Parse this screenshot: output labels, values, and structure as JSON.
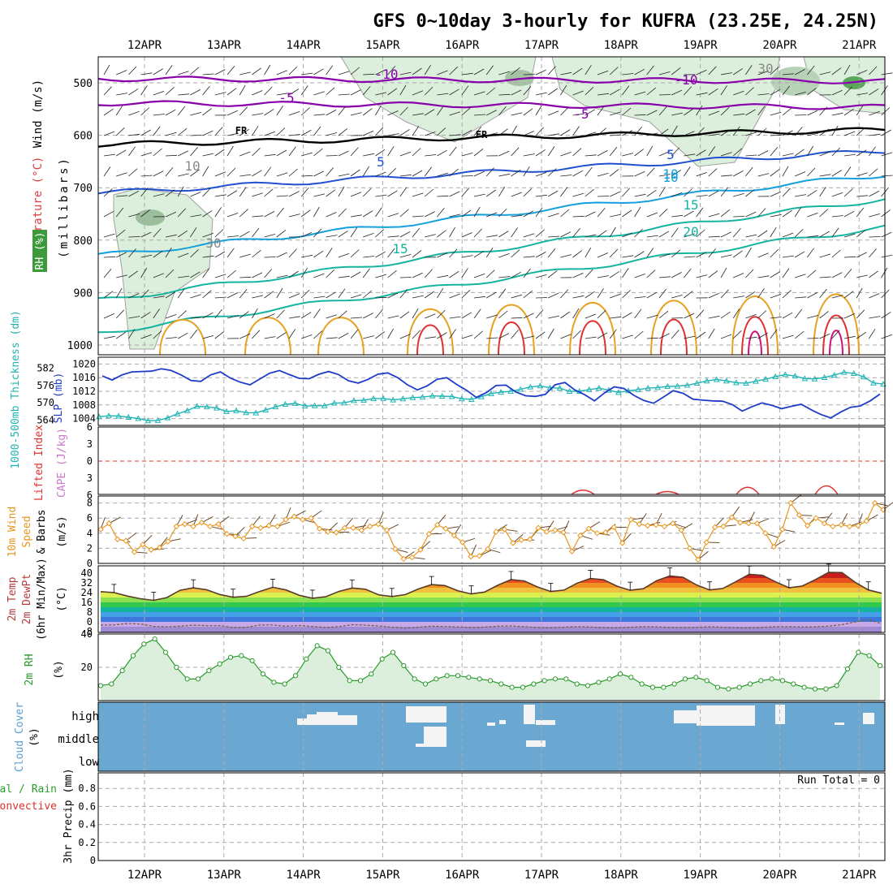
{
  "title": "GFS 0~10day 3-hourly for KUFRA (23.25E, 24.25N)",
  "dates": [
    "12APR",
    "13APR",
    "14APR",
    "15APR",
    "16APR",
    "17APR",
    "18APR",
    "19APR",
    "20APR",
    "21APR"
  ],
  "colors": {
    "frame": "#000000",
    "grid": "#aaaaaa",
    "rh_fill": "#dcefdc",
    "rh_line": "#a0a0a0",
    "temp_cold": "#8800aa",
    "temp_blue": "#1e50d0",
    "temp_cyan": "#14a0dc",
    "temp_teal": "#14b4a0",
    "temp_orange": "#e8a020",
    "temp_red": "#e03030",
    "temp_magenta": "#d0107a",
    "slp": "#1e3cc8",
    "thickness": "#20b4b4",
    "lifted": "#e03030",
    "cape": "#c878c8",
    "wind": "#e8961e",
    "cloud": "#6aa8d2",
    "rh2m": "#2a9a2a",
    "precip_total": "#2aa02a",
    "precip_conv": "#e03030"
  },
  "labels": {
    "p1_wind": "Wind (m/s)",
    "p1_temp": "Temperature (°C)",
    "p1_rh": "RH (%)",
    "p1_mb": "(millibars)",
    "p2_thk": "1000-500mb Thickness (dm)",
    "p2_slp": "SLP (mb)",
    "p3_li": "Lifted Index",
    "p3_cape": "CAPE (J/kg)",
    "p4_a": "10m Wind",
    "p4_b": "Speed",
    "p4_c": "& Barbs",
    "p4_unit": "(m/s)",
    "p5_a": "2m Temp",
    "p5_b": "2m DewPt",
    "p5_c": "(6hr Min/Max)",
    "p5_unit": "(°C)",
    "p6_a": "2m RH",
    "p6_unit": "(%)",
    "p7_a": "Cloud Cover",
    "p7_unit": "(%)",
    "p8_a": "Total / Rain",
    "p8_b": "Convective",
    "p8_c": "3hr Precip (mm)",
    "run_total": "Run Total = 0"
  },
  "chart_data": [
    {
      "type": "contour",
      "name": "upper-air",
      "y_ticks": [
        500,
        600,
        700,
        800,
        900,
        1000
      ],
      "contour_labels": [
        "-10",
        "-5",
        "FR",
        "5",
        "10",
        "15",
        "20",
        "-10",
        "-5",
        "FR",
        "5",
        "15",
        "10",
        "30",
        "30",
        "10"
      ]
    },
    {
      "type": "line",
      "name": "slp-thickness",
      "y_ticks_left": [
        564,
        570,
        576,
        582
      ],
      "y_ticks_right": [
        1004,
        1008,
        1012,
        1016,
        1020
      ],
      "series": [
        {
          "name": "SLP (mb)",
          "values": [
            1016.5,
            1015.3,
            1016.8,
            1017.7,
            1017.8,
            1017.9,
            1018.6,
            1018.1,
            1016.8,
            1015.2,
            1014.9,
            1016.8,
            1017.7,
            1015.9,
            1014.7,
            1013.9,
            1015.6,
            1017.3,
            1018.1,
            1016.9,
            1015.8,
            1015.7,
            1017.0,
            1017.8,
            1016.9,
            1015.1,
            1014.4,
            1015.5,
            1017.0,
            1017.4,
            1016.0,
            1013.9,
            1012.4,
            1013.6,
            1015.5,
            1016.0,
            1014.0,
            1012.3,
            1010.2,
            1011.6,
            1013.7,
            1013.8,
            1011.8,
            1010.7,
            1010.5,
            1011.1,
            1013.9,
            1014.6,
            1012.4,
            1011.0,
            1009.2,
            1011.5,
            1013.3,
            1012.8,
            1010.8,
            1009.3,
            1008.5,
            1010.3,
            1012.2,
            1011.4,
            1009.7,
            1009.4,
            1009.2,
            1009.1,
            1008.1,
            1006.2,
            1007.5,
            1008.6,
            1007.9,
            1006.9,
            1007.6,
            1008.2,
            1006.6,
            1005.2,
            1004.2,
            1005.9,
            1007.3,
            1007.7,
            1009.2,
            1011.2
          ]
        },
        {
          "name": "1000-500mb Thickness (dm)",
          "values": [
            565.2,
            565.5,
            565.4,
            565.0,
            564.6,
            563.8,
            563.9,
            564.8,
            566.2,
            567.3,
            568.8,
            568.6,
            568.2,
            567.0,
            567.3,
            566.6,
            566.5,
            567.5,
            568.6,
            569.5,
            569.8,
            568.9,
            569.0,
            569.0,
            569.9,
            570.0,
            570.8,
            570.9,
            571.5,
            571.5,
            571.0,
            571.4,
            571.8,
            572.0,
            572.4,
            572.3,
            572.2,
            571.4,
            571.2,
            572.1,
            573.2,
            573.7,
            574.0,
            574.7,
            575.5,
            575.9,
            575.2,
            575.1,
            574.0,
            574.0,
            574.6,
            575.1,
            574.4,
            573.6,
            574.2,
            574.6,
            575.1,
            575.3,
            575.7,
            575.8,
            576.1,
            576.8,
            577.6,
            578.1,
            577.6,
            577.0,
            576.8,
            577.5,
            578.2,
            579.1,
            579.8,
            579.3,
            578.4,
            578.3,
            578.8,
            579.6,
            580.6,
            580.2,
            579.0,
            576.9,
            576.5
          ]
        }
      ]
    },
    {
      "type": "line",
      "name": "lifted-index-cape",
      "y_ticks": [
        -6,
        -3,
        0,
        3,
        6
      ],
      "series": [
        {
          "name": "Lifted Index",
          "values": [
            4.5,
            5.8,
            5.0,
            5.4,
            3.9,
            4.6,
            4.1,
            3.3,
            4.9,
            3.9
          ]
        }
      ]
    },
    {
      "type": "line",
      "name": "10m-wind",
      "y_ticks": [
        2,
        4,
        6,
        8
      ],
      "series": [
        {
          "name": "10m Wind Speed",
          "values": [
            4.5,
            5.3,
            3.2,
            3.0,
            1.5,
            2.5,
            1.8,
            2.1,
            2.9,
            4.9,
            5.2,
            4.9,
            5.4,
            4.9,
            5.2,
            3.9,
            3.6,
            3.3,
            4.9,
            4.7,
            5.0,
            4.9,
            5.8,
            6.2,
            5.8,
            6.0,
            4.6,
            4.2,
            4.1,
            4.7,
            4.7,
            4.4,
            4.9,
            5.2,
            4.4,
            1.9,
            0.6,
            0.8,
            1.8,
            3.9,
            5.1,
            4.6,
            3.7,
            2.8,
            0.9,
            1.0,
            1.9,
            4.2,
            4.5,
            2.7,
            3.1,
            3.2,
            4.7,
            4.2,
            4.4,
            4.1,
            1.6,
            3.7,
            4.6,
            4.0,
            4.1,
            4.8,
            2.7,
            5.8,
            5.2,
            5.0,
            5.1,
            4.9,
            5.3,
            4.4,
            2.0,
            0.5,
            2.8,
            4.8,
            4.9,
            6.1,
            5.4,
            5.3,
            5.3,
            4.0,
            2.2,
            4.5,
            8.0,
            6.4,
            5.0,
            6.0,
            5.3,
            4.9,
            5.1,
            4.9,
            5.0,
            5.6,
            8.0,
            7.1
          ]
        }
      ]
    },
    {
      "type": "area",
      "name": "2m-temp",
      "y_ticks": [
        -8,
        0,
        8,
        16,
        24,
        32,
        40
      ],
      "series": [
        {
          "name": "2m Temp",
          "values": [
            24.8,
            24.1,
            21.2,
            19.0,
            17.7,
            19.9,
            25.9,
            27.9,
            26.4,
            22.5,
            20.2,
            20.9,
            24.9,
            28.4,
            26.2,
            21.8,
            19.4,
            20.6,
            25.0,
            27.8,
            26.8,
            22.2,
            20.8,
            22.3,
            27.0,
            30.6,
            29.8,
            25.5,
            22.9,
            24.5,
            30.1,
            34.7,
            33.6,
            28.7,
            24.9,
            26.1,
            31.8,
            35.6,
            34.6,
            29.3,
            25.9,
            27.2,
            33.8,
            37.7,
            36.6,
            30.4,
            26.2,
            27.4,
            33.1,
            39.1,
            38.2,
            32.8,
            28.0,
            29.4,
            34.7,
            40.7,
            40.5,
            32.5,
            26.2,
            23.5
          ]
        },
        {
          "name": "2m DewPt",
          "values": [
            -2.7,
            -2.5,
            -1.4,
            -1.8,
            -3.7,
            -4.1,
            -3.6,
            -2.7,
            -3.1,
            -3.2,
            -4.7,
            -4.5,
            -2.6,
            -2.5,
            -3.6,
            -3.0,
            -3.8,
            -4.6,
            -3.9,
            -2.3,
            -2.7,
            -3.4,
            -4.4,
            -5.2,
            -4.4,
            -3.5,
            -3.8,
            -4.2,
            -4.6,
            -4.3,
            -3.5,
            -3.3,
            -3.9,
            -4.7,
            -4.9,
            -4.4,
            -3.9,
            -4.2,
            -4.8,
            -5.0,
            -4.4,
            -3.9,
            -4.1,
            -4.6,
            -4.8,
            -4.5,
            -4.1,
            -4.4,
            -4.9,
            -5.0,
            -4.5,
            -4.0,
            -3.9,
            -4.2,
            -4.1,
            -3.5,
            -2.3,
            -0.1,
            1.9,
            -1.5
          ]
        }
      ]
    },
    {
      "type": "area",
      "name": "2m-rh",
      "y_ticks": [
        20,
        40
      ],
      "series": [
        {
          "name": "2m RH",
          "values": [
            9,
            10,
            18,
            27,
            34,
            37,
            29,
            20,
            13,
            13,
            18,
            22,
            26,
            27,
            24,
            16,
            11,
            10,
            15,
            25,
            33,
            30,
            20,
            12,
            12,
            16,
            25,
            29,
            21,
            13,
            10,
            13,
            15,
            15,
            14,
            13,
            12,
            10,
            8,
            8,
            10,
            12,
            13,
            13,
            10,
            9,
            11,
            13,
            16,
            14,
            10,
            8,
            8,
            10,
            13,
            14,
            12,
            8,
            7,
            8,
            10,
            12,
            13,
            12,
            10,
            8,
            7,
            7,
            9,
            19,
            29,
            27,
            21
          ]
        }
      ]
    },
    {
      "type": "heatmap",
      "name": "cloud-cover",
      "y_ticks": [
        "high",
        "middle",
        "low"
      ]
    },
    {
      "type": "bar",
      "name": "precip",
      "y_ticks": [
        0,
        0.2,
        0.4,
        0.6,
        0.8
      ],
      "ylim": [
        0,
        0.8
      ],
      "series": [
        {
          "name": "3hr Precip",
          "values": []
        }
      ]
    }
  ]
}
